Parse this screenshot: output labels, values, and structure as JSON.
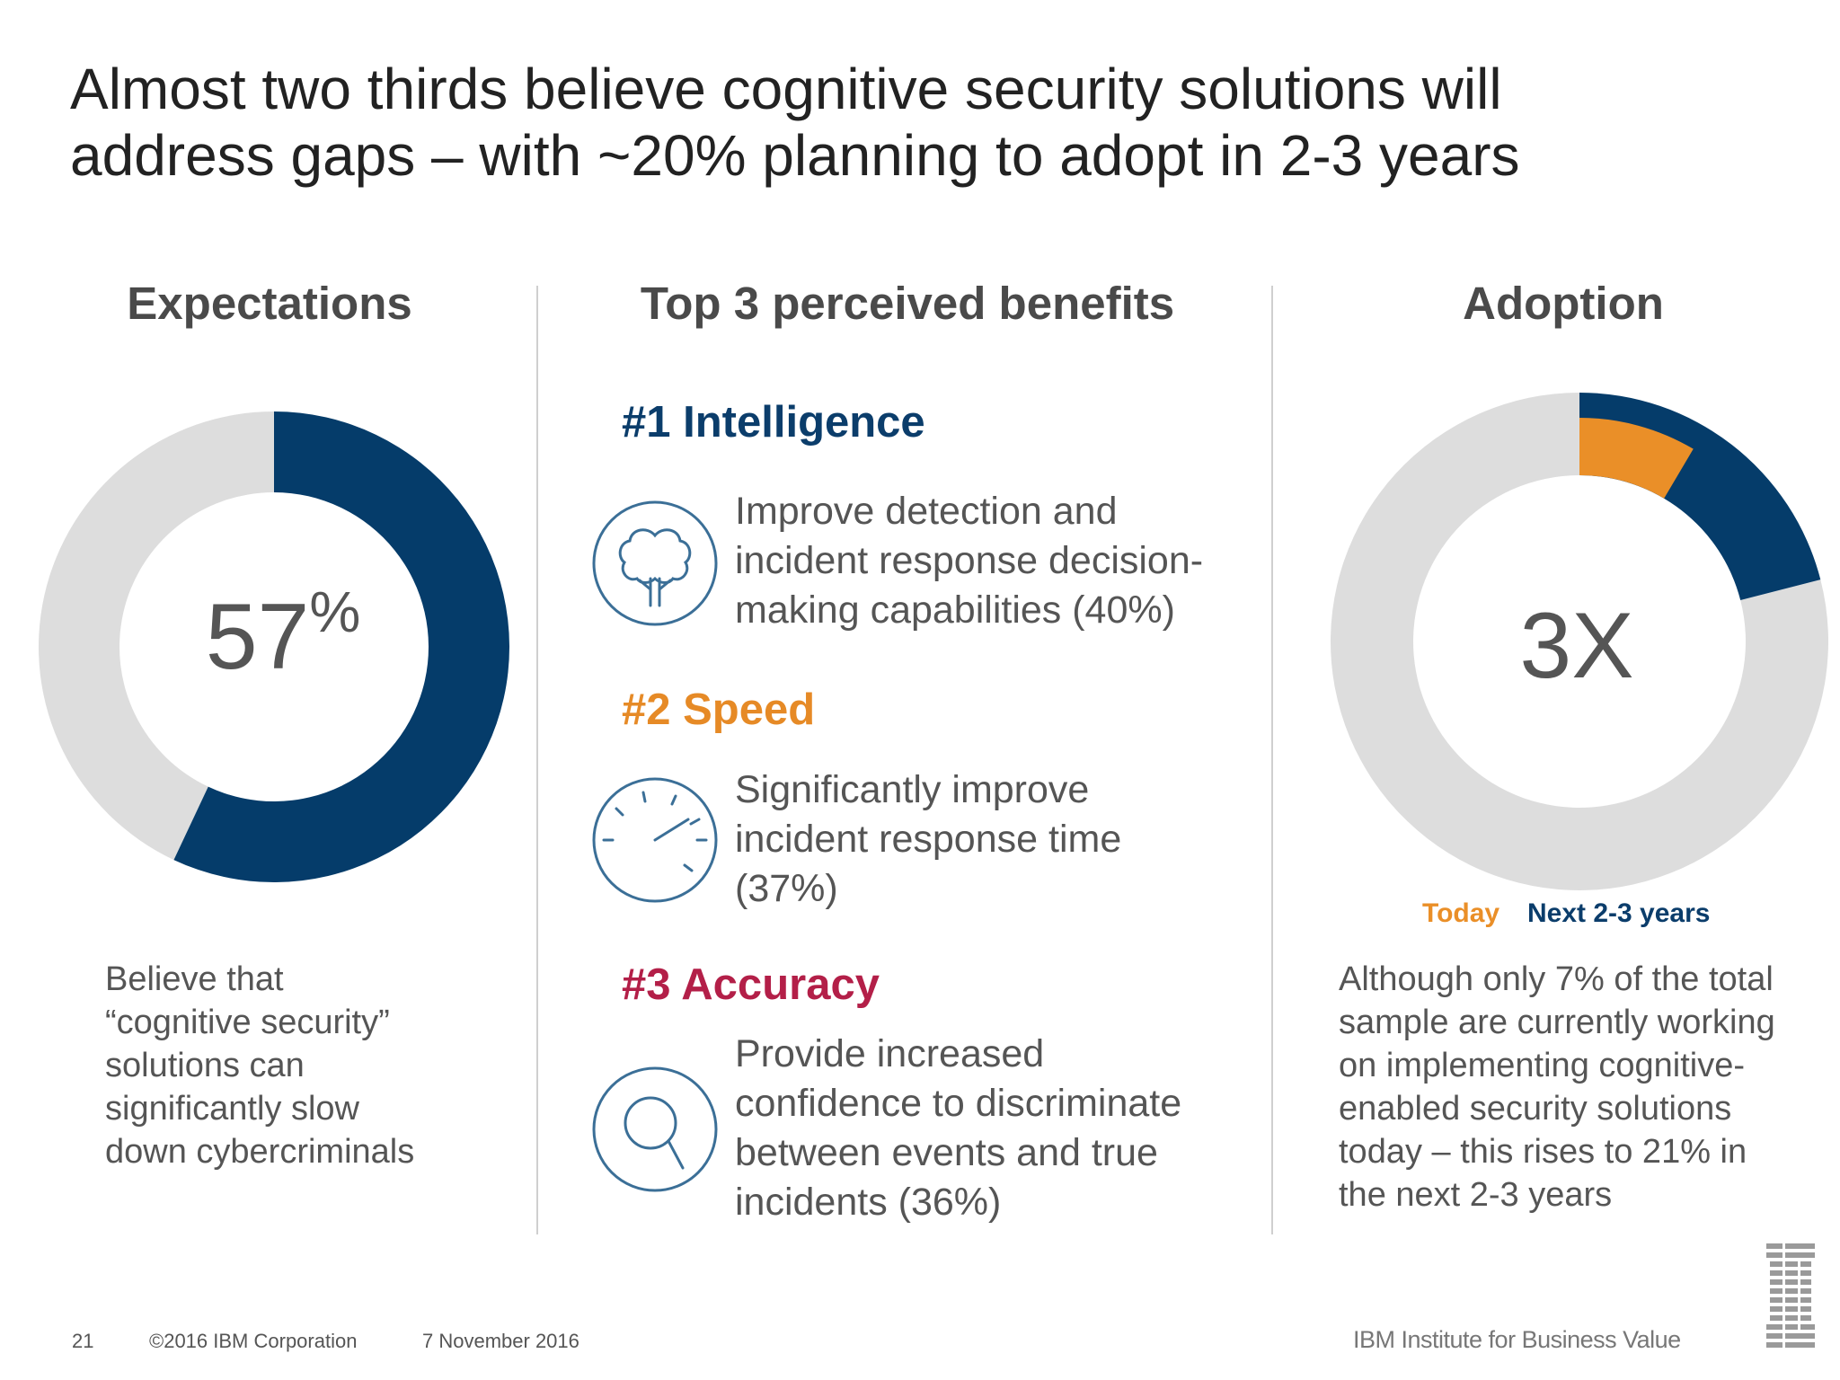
{
  "title_lines": [
    "Almost two thirds believe cognitive security solutions will",
    "address gaps – with ~20% planning to adopt in 2-3 years"
  ],
  "columns": {
    "expectations": {
      "heading": "Expectations",
      "number": "57",
      "percent_sign": "%",
      "caption_lines": [
        "Believe that",
        "“cognitive security”",
        "solutions can",
        "significantly slow",
        "down cybercriminals"
      ]
    },
    "benefits": {
      "heading": "Top 3 perceived benefits",
      "items": [
        {
          "title": "#1 Intelligence",
          "color": "#0b3d6b",
          "icon": "brain-tree-icon",
          "desc_lines": [
            "Improve detection and",
            "incident response decision-",
            "making capabilities (40%)"
          ]
        },
        {
          "title": "#2 Speed",
          "color": "#e68a26",
          "icon": "speedometer-icon",
          "desc_lines": [
            "Significantly improve",
            "incident response time",
            "(37%)"
          ]
        },
        {
          "title": "#3 Accuracy",
          "color": "#b31f48",
          "icon": "magnifier-icon",
          "desc_lines": [
            "Provide increased",
            "confidence to discriminate",
            "between events and true",
            "incidents (36%)"
          ]
        }
      ]
    },
    "adoption": {
      "heading": "Adoption",
      "center_text": "3X",
      "legend_today": "Today",
      "legend_next": "Next 2-3 years",
      "caption_lines": [
        "Although only 7% of the total",
        "sample are currently working",
        "on implementing cognitive-",
        "enabled security solutions",
        "today – this rises  to 21% in",
        "the next 2-3 years"
      ]
    }
  },
  "chart_data": [
    {
      "type": "pie",
      "variant": "donut",
      "labels": [
        "Believe",
        "Other"
      ],
      "values": [
        57,
        43
      ],
      "colors": [
        "#053c6a",
        "#dddddd"
      ]
    },
    {
      "type": "pie",
      "variant": "donut",
      "series": [
        {
          "name": "Next 2-3 years",
          "values": [
            21,
            79
          ],
          "colors": [
            "#053c6a",
            "#dddddd"
          ]
        },
        {
          "name": "Today",
          "values": [
            7
          ],
          "colors": [
            "#ea8f28"
          ]
        }
      ]
    }
  ],
  "colors": {
    "navy": "#053c6a",
    "orange": "#ea8f28",
    "gray_ring": "#dddddd",
    "text": "#555555"
  },
  "footer": {
    "page": "21",
    "copyright": "©2016 IBM Corporation",
    "date": "7 November 2016",
    "brand": "IBM Institute for Business Value"
  }
}
